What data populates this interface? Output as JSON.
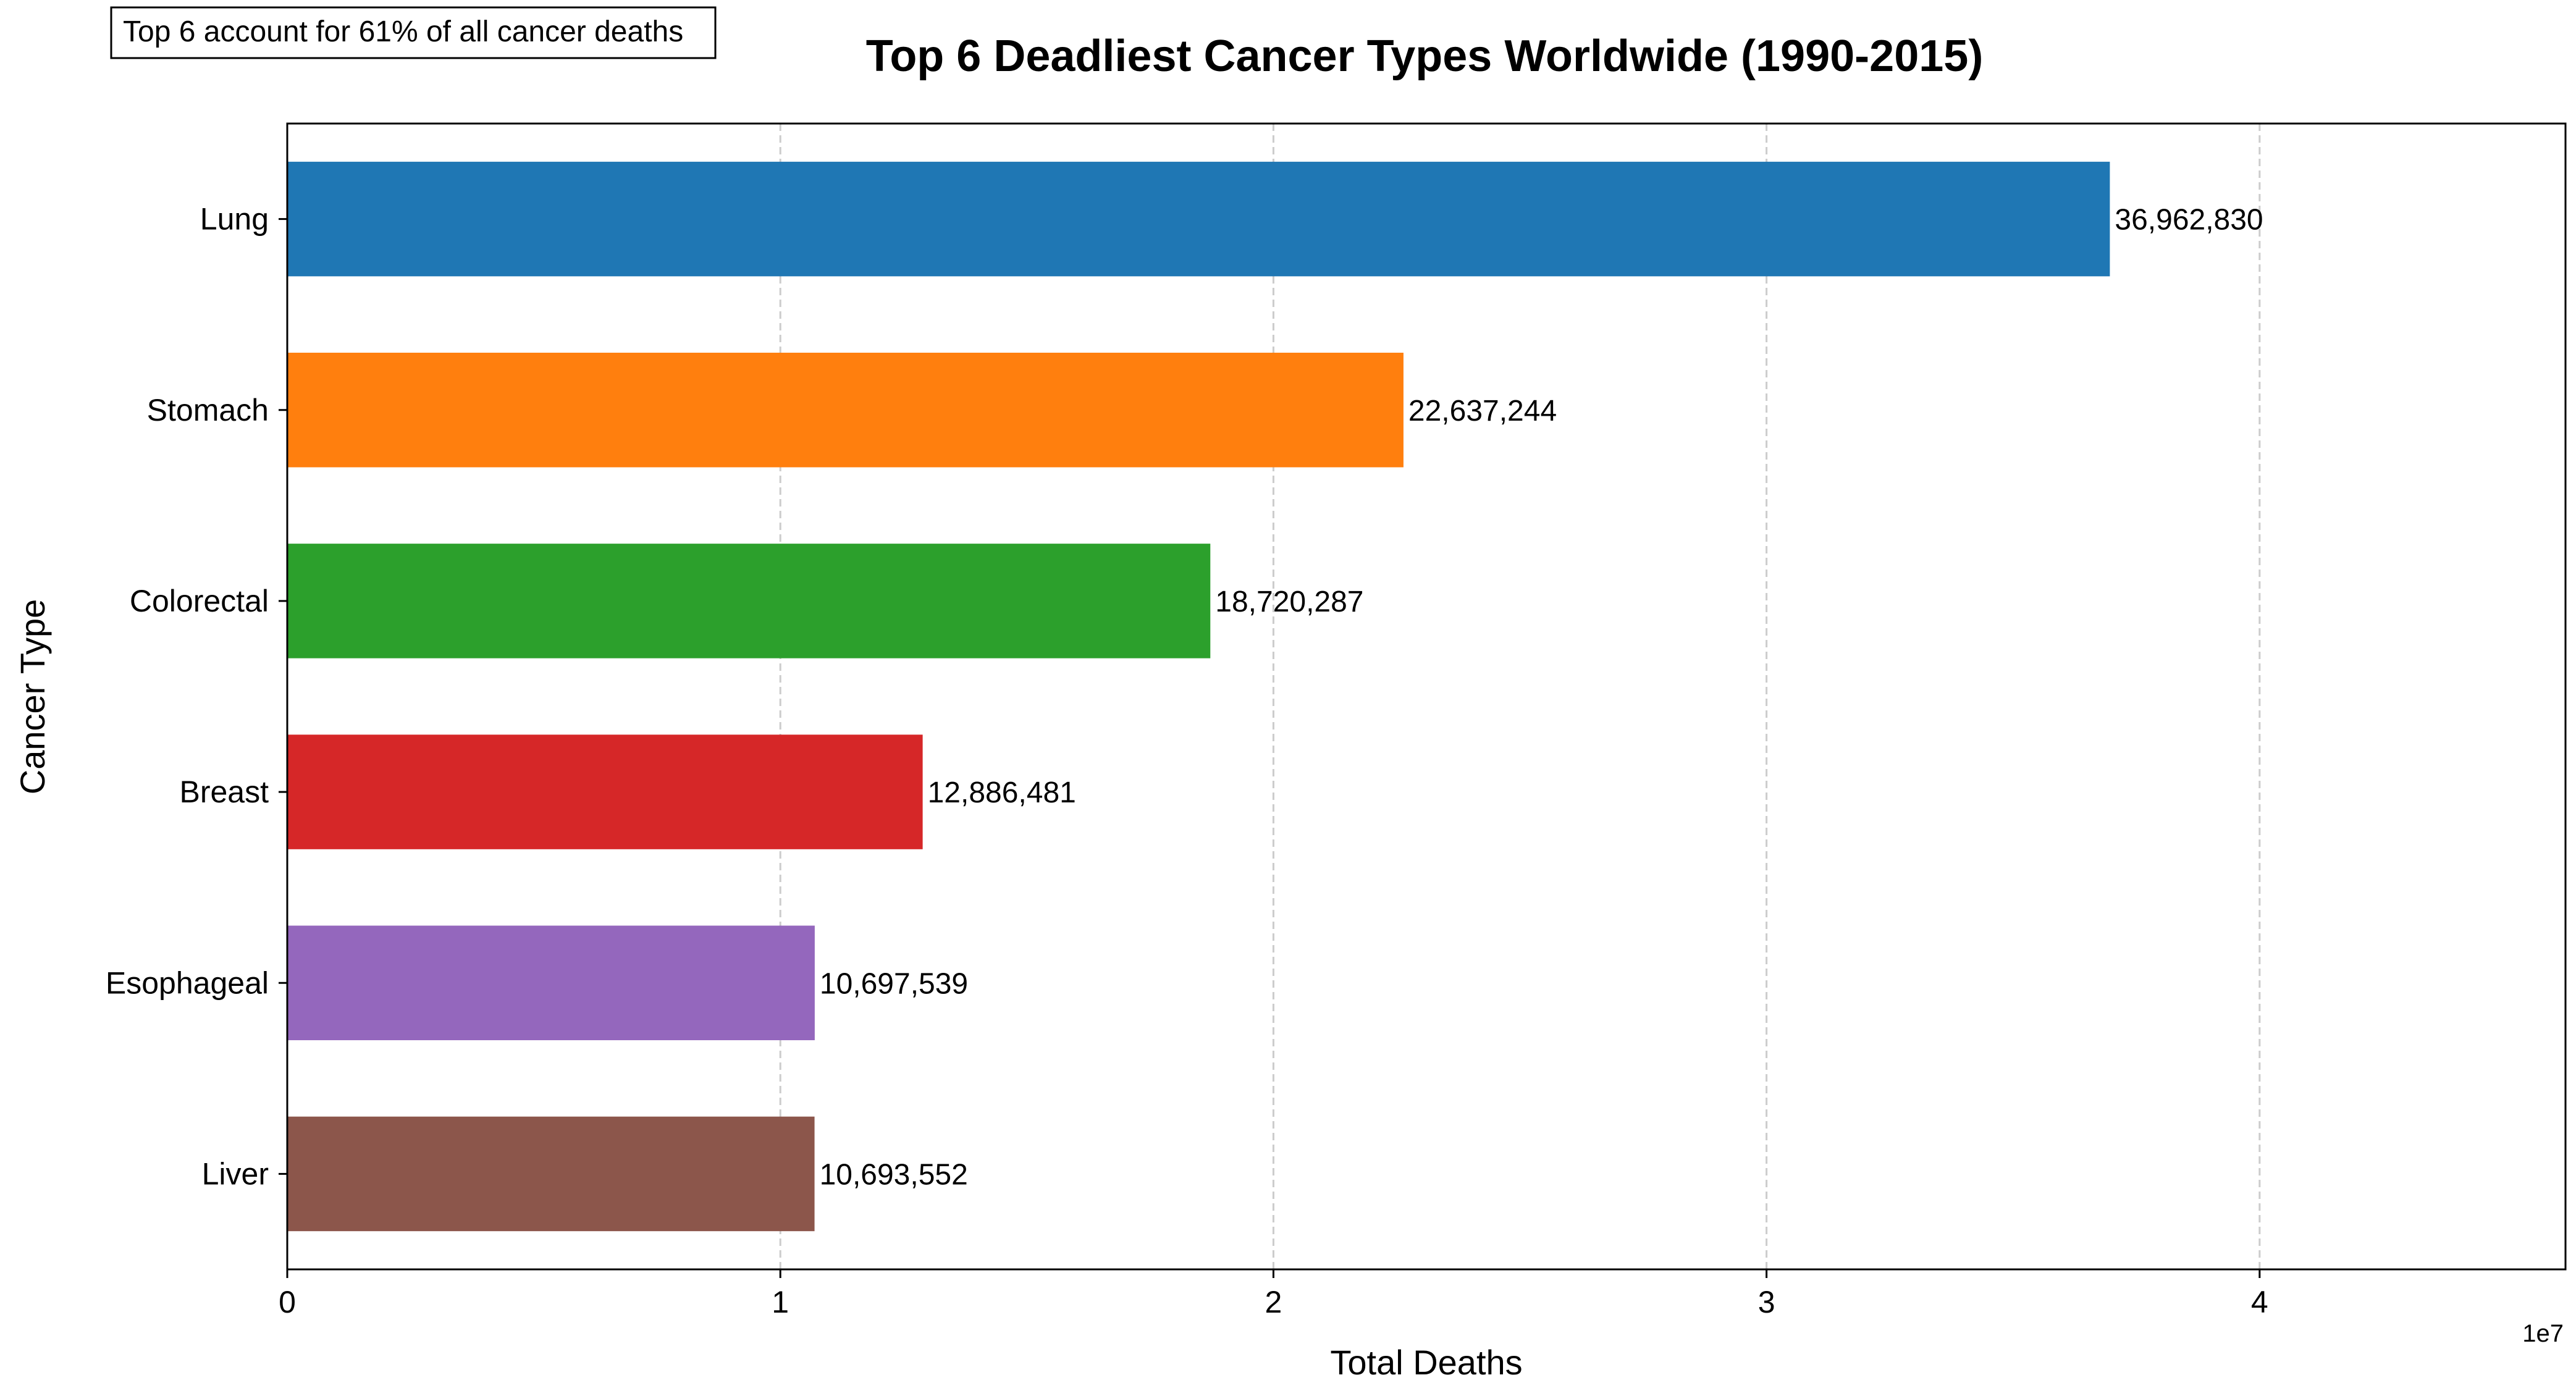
{
  "chart_data": {
    "type": "bar",
    "orientation": "horizontal",
    "title": "Top 6 Deadliest Cancer Types Worldwide (1990-2015)",
    "xlabel": "Total Deaths",
    "ylabel": "Cancer Type",
    "annotation": "Top 6 account for 61% of all cancer deaths",
    "x_offset_label": "1e7",
    "xlim": [
      0,
      46203537
    ],
    "xticks": [
      0,
      10000000,
      20000000,
      30000000,
      40000000
    ],
    "xtick_labels": [
      "0",
      "1",
      "2",
      "3",
      "4"
    ],
    "grid": "x-dashed",
    "categories": [
      "Lung",
      "Stomach",
      "Colorectal",
      "Breast",
      "Esophageal",
      "Liver"
    ],
    "values": [
      36962830,
      22637244,
      18720287,
      12886481,
      10697539,
      10693552
    ],
    "value_labels": [
      "36,962,830",
      "22,637,244",
      "18,720,287",
      "12,886,481",
      "10,697,539",
      "10,693,552"
    ],
    "colors": [
      "#1f77b4",
      "#ff7f0e",
      "#2ca02c",
      "#d62728",
      "#9467bd",
      "#8c564b"
    ]
  }
}
